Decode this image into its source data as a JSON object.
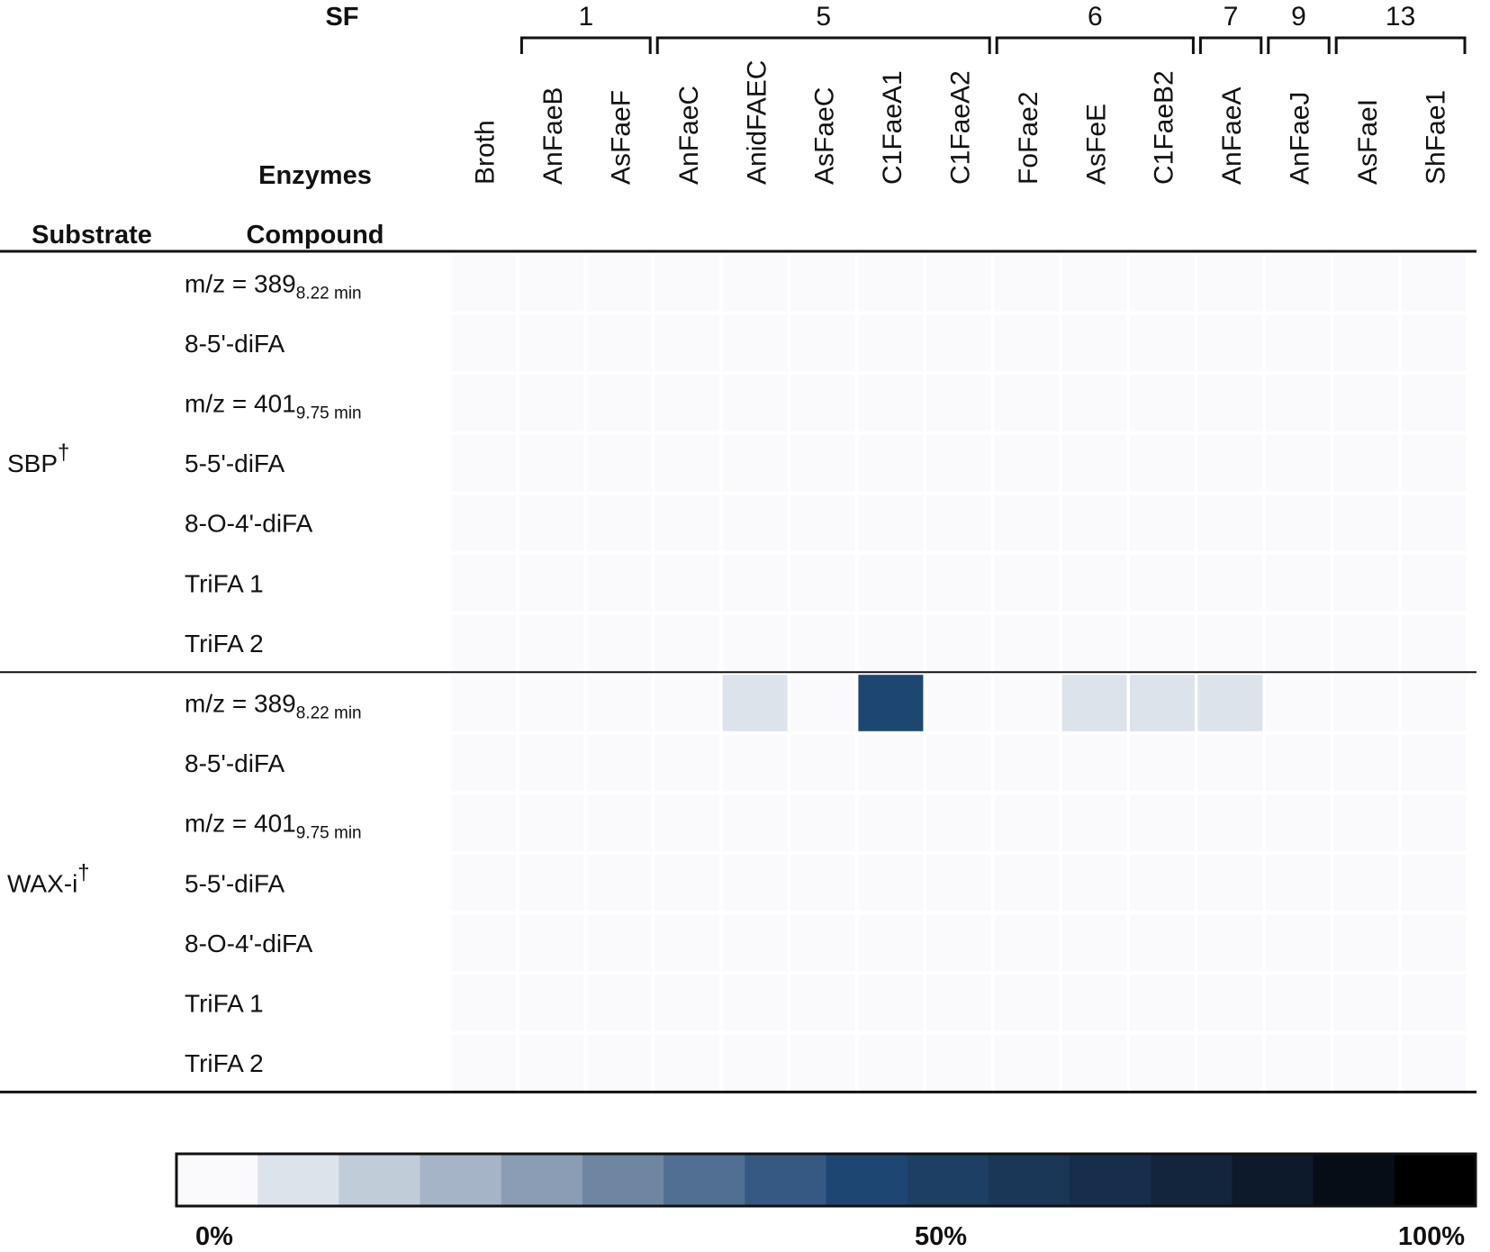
{
  "chart_data": {
    "type": "heatmap",
    "headers": {
      "sf": "SF",
      "enzymes": "Enzymes",
      "substrate": "Substrate",
      "compound": "Compound"
    },
    "columns": [
      "Broth",
      "AnFaeB",
      "AsFaeF",
      "AnFaeC",
      "AnidFAEC",
      "AsFaeC",
      "C1FaeA1",
      "C1FaeA2",
      "FoFae2",
      "AsFeE",
      "C1FaeB2",
      "AnFaeA",
      "AnFaeJ",
      "AsFaeI",
      "ShFae1"
    ],
    "sf_groups": [
      {
        "label": "1",
        "start": 1,
        "end": 2
      },
      {
        "label": "5",
        "start": 3,
        "end": 7
      },
      {
        "label": "6",
        "start": 8,
        "end": 10
      },
      {
        "label": "7",
        "start": 11,
        "end": 11
      },
      {
        "label": "9",
        "start": 12,
        "end": 12
      },
      {
        "label": "13",
        "start": 13,
        "end": 14
      }
    ],
    "substrates": [
      {
        "label": "SBP",
        "mark": "†",
        "rows": [
          {
            "compound": "m/z = 389",
            "sub": "8.22 min",
            "values": [
              0,
              0,
              0,
              0,
              0,
              0,
              3,
              2,
              2,
              0,
              3,
              0,
              0,
              0,
              0
            ]
          },
          {
            "compound": "8-5'-diFA",
            "sub": "",
            "values": [
              0,
              0,
              0,
              0,
              0,
              0,
              0,
              0,
              0,
              0,
              0,
              0,
              0,
              0,
              0
            ]
          },
          {
            "compound": "m/z = 401",
            "sub": "9.75 min",
            "values": [
              0,
              0,
              0,
              0,
              0,
              0,
              0,
              0,
              0,
              0,
              0,
              0,
              0,
              0,
              0
            ]
          },
          {
            "compound": "5-5'-diFA",
            "sub": "",
            "values": [
              0,
              0,
              0,
              0,
              0,
              0,
              0,
              0,
              0,
              0,
              0,
              0,
              0,
              0,
              0
            ]
          },
          {
            "compound": "8-O-4'-diFA",
            "sub": "",
            "values": [
              0,
              0,
              0,
              0,
              0,
              0,
              1,
              0,
              0,
              0,
              0,
              0,
              0,
              0,
              0
            ]
          },
          {
            "compound": "TriFA 1",
            "sub": "",
            "values": [
              0,
              0,
              0,
              0,
              0,
              0,
              0,
              0,
              0,
              0,
              0,
              0,
              0,
              0,
              0
            ]
          },
          {
            "compound": "TriFA 2",
            "sub": "",
            "values": [
              0,
              0,
              0,
              0,
              0,
              0,
              0,
              0,
              0,
              0,
              0,
              0,
              0,
              0,
              0
            ]
          }
        ]
      },
      {
        "label": "WAX-i",
        "mark": "†",
        "rows": [
          {
            "compound": "m/z = 389",
            "sub": "8.22 min",
            "values": [
              0,
              1,
              1,
              3,
              8,
              5,
              50,
              2,
              0,
              7,
              12,
              10,
              0,
              1,
              1
            ]
          },
          {
            "compound": "8-5'-diFA",
            "sub": "",
            "values": [
              0,
              0,
              0,
              0,
              0,
              0,
              3,
              0,
              0,
              0,
              0,
              0,
              0,
              0,
              0
            ]
          },
          {
            "compound": "m/z = 401",
            "sub": "9.75 min",
            "values": [
              0,
              0,
              0,
              0,
              0,
              0,
              0,
              0,
              0,
              0,
              0,
              0,
              0,
              0,
              0
            ]
          },
          {
            "compound": "5-5'-diFA",
            "sub": "",
            "values": [
              0,
              0,
              0,
              0,
              0,
              0,
              1,
              0,
              0,
              0,
              0,
              0,
              0,
              0,
              0
            ]
          },
          {
            "compound": "8-O-4'-diFA",
            "sub": "",
            "values": [
              0,
              0,
              0,
              0,
              0,
              0,
              0,
              0,
              0,
              0,
              0,
              0,
              0,
              0,
              0
            ]
          },
          {
            "compound": "TriFA 1",
            "sub": "",
            "values": [
              0,
              0,
              0,
              0,
              0,
              0,
              0,
              0,
              0,
              0,
              0,
              0,
              0,
              0,
              0
            ]
          },
          {
            "compound": "TriFA 2",
            "sub": "",
            "values": [
              0,
              0,
              0,
              0,
              0,
              0,
              0,
              0,
              0,
              0,
              0,
              0,
              0,
              0,
              0
            ]
          }
        ]
      }
    ],
    "colorbar": {
      "colors": [
        "#fafafd",
        "#dde3eb",
        "#c1ccd9",
        "#a5b4c6",
        "#8a9db5",
        "#6e86a2",
        "#516f92",
        "#365983",
        "#1e4673",
        "#1d3f64",
        "#1a3757",
        "#162e4b",
        "#13253c",
        "#0d1a2b",
        "#060d17",
        "#000000"
      ],
      "ticks": [
        {
          "value": 0,
          "label": "0%"
        },
        {
          "value": 50,
          "label": "50%"
        },
        {
          "value": 100,
          "label": "100%"
        }
      ],
      "range": [
        0,
        100
      ]
    }
  }
}
